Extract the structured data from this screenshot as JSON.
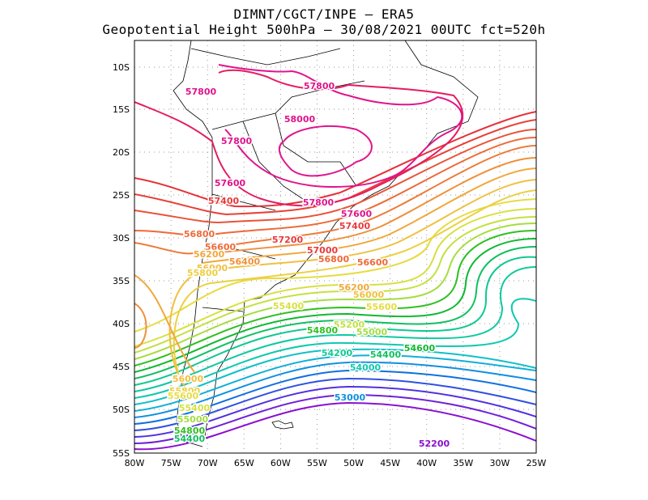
{
  "header": {
    "line1": "DIMNT/CGCT/INPE –  ERA5",
    "line2": "Geopotential Height 500hPa –  30/08/2021 00UTC fct=520h"
  },
  "axes": {
    "lat_labels": [
      "10S",
      "15S",
      "20S",
      "25S",
      "30S",
      "35S",
      "40S",
      "45S",
      "50S",
      "55S"
    ],
    "lon_labels": [
      "80W",
      "75W",
      "70W",
      "65W",
      "60W",
      "55W",
      "50W",
      "45W",
      "40W",
      "35W",
      "30W",
      "25W"
    ]
  },
  "contour_labels": [
    {
      "text": "57800",
      "color": "#e0148c"
    },
    {
      "text": "57800",
      "color": "#e0148c"
    },
    {
      "text": "58000",
      "color": "#e0148c"
    },
    {
      "text": "57800",
      "color": "#e0148c"
    },
    {
      "text": "57600",
      "color": "#e0148c"
    },
    {
      "text": "57800",
      "color": "#e0148c"
    },
    {
      "text": "57600",
      "color": "#e0148c"
    },
    {
      "text": "57400",
      "color": "#e83a3a"
    },
    {
      "text": "57400",
      "color": "#e83a3a"
    },
    {
      "text": "57200",
      "color": "#e83a3a"
    },
    {
      "text": "57000",
      "color": "#e83a3a"
    },
    {
      "text": "56800",
      "color": "#ee6a38"
    },
    {
      "text": "56800",
      "color": "#ee6a38"
    },
    {
      "text": "56600",
      "color": "#ee6a38"
    },
    {
      "text": "56600",
      "color": "#ee6a38"
    },
    {
      "text": "56400",
      "color": "#f0903a"
    },
    {
      "text": "56200",
      "color": "#f0a83c"
    },
    {
      "text": "56200",
      "color": "#f0a83c"
    },
    {
      "text": "56000",
      "color": "#f0c040"
    },
    {
      "text": "56000",
      "color": "#f0c040"
    },
    {
      "text": "55800",
      "color": "#ecd040"
    },
    {
      "text": "55600",
      "color": "#e6dc40"
    },
    {
      "text": "55400",
      "color": "#d8e040"
    },
    {
      "text": "55200",
      "color": "#c4e040"
    },
    {
      "text": "55000",
      "color": "#a6dc40"
    },
    {
      "text": "54800",
      "color": "#30c020"
    },
    {
      "text": "54600",
      "color": "#10b830"
    },
    {
      "text": "54400",
      "color": "#10c060"
    },
    {
      "text": "54200",
      "color": "#10c890"
    },
    {
      "text": "54000",
      "color": "#10c8b0"
    },
    {
      "text": "53000",
      "color": "#1090e0"
    },
    {
      "text": "52200",
      "color": "#8a10d0"
    },
    {
      "text": "56000",
      "color": "#f0c040"
    },
    {
      "text": "55800",
      "color": "#ecd040"
    },
    {
      "text": "55600",
      "color": "#e6dc40"
    },
    {
      "text": "55400",
      "color": "#d8e040"
    },
    {
      "text": "55000",
      "color": "#a6dc40"
    },
    {
      "text": "54800",
      "color": "#30c020"
    },
    {
      "text": "54400",
      "color": "#10c060"
    }
  ],
  "contours": [
    {
      "level": "52200",
      "color": "#8a10d0"
    },
    {
      "level": "52400",
      "color": "#7020d8"
    },
    {
      "level": "52600",
      "color": "#5030e0"
    },
    {
      "level": "52800",
      "color": "#3050e0"
    },
    {
      "level": "53000",
      "color": "#1070e0"
    },
    {
      "level": "53200",
      "color": "#1090e0"
    },
    {
      "level": "53400",
      "color": "#10b0d8"
    },
    {
      "level": "53600",
      "color": "#10c0c8"
    },
    {
      "level": "53800",
      "color": "#10c8b0"
    },
    {
      "level": "54000",
      "color": "#10c8a0"
    },
    {
      "level": "54200",
      "color": "#10c890"
    },
    {
      "level": "54400",
      "color": "#10c060"
    },
    {
      "level": "54600",
      "color": "#10b830"
    },
    {
      "level": "54800",
      "color": "#30c020"
    },
    {
      "level": "55000",
      "color": "#a6dc40"
    },
    {
      "level": "55200",
      "color": "#c4e040"
    },
    {
      "level": "55400",
      "color": "#d8e040"
    },
    {
      "level": "55600",
      "color": "#e6dc40"
    },
    {
      "level": "55800",
      "color": "#ecd040"
    },
    {
      "level": "56000",
      "color": "#f0c040"
    },
    {
      "level": "56200",
      "color": "#f0a83c"
    },
    {
      "level": "56400",
      "color": "#f0903a"
    },
    {
      "level": "56600",
      "color": "#ee7a38"
    },
    {
      "level": "56800",
      "color": "#ee6a38"
    },
    {
      "level": "57000",
      "color": "#ea5238"
    },
    {
      "level": "57200",
      "color": "#e84038"
    },
    {
      "level": "57400",
      "color": "#e63038"
    },
    {
      "level": "57600",
      "color": "#e41c60"
    },
    {
      "level": "57800",
      "color": "#e0148c"
    },
    {
      "level": "58000",
      "color": "#e0148c"
    }
  ]
}
